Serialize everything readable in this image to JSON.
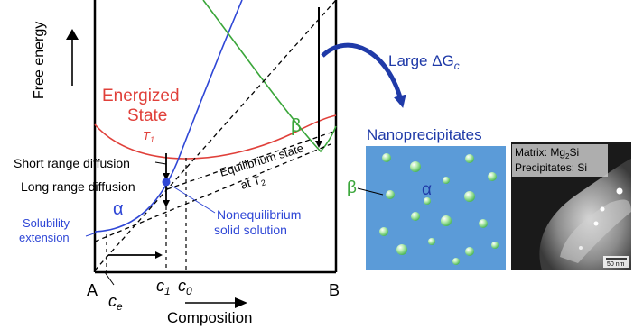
{
  "axes": {
    "ylabel": "Free energy",
    "xlabel": "Composition",
    "left_end": "A",
    "right_end": "B"
  },
  "curves": {
    "energized_state": "Energized",
    "energized_state_2": "State",
    "energized_temp": "T",
    "energized_temp_sub": "1",
    "alpha": "α",
    "beta": "β",
    "equilibrium_line1": "Equilibrium state",
    "equilibrium_line2": "at T",
    "equilibrium_line2_sub": "2"
  },
  "labels": {
    "short_range": "Short range diffusion",
    "long_range": "Long range diffusion",
    "solubility_1": "Solubility",
    "solubility_2": "extension",
    "noneq_1": "Nonequilibrium",
    "noneq_2": "solid solution",
    "ce": "c",
    "ce_sub": "e",
    "c1": "c",
    "c1_sub": "1",
    "c0": "c",
    "c0_sub": "0",
    "large_dg": "Large ΔG",
    "large_dg_sub": "c"
  },
  "nano": {
    "title": "Nanoprecipitates",
    "beta": "β",
    "alpha": "α"
  },
  "micrograph": {
    "matrix": "Matrix: Mg",
    "matrix_sub": "2",
    "matrix_tail": "Si",
    "precip": "Precipitates: Si",
    "scale": "50 nm"
  },
  "colors": {
    "energized": "#e0403a",
    "alpha": "#2f47d6",
    "beta": "#3aa63a",
    "arrow": "#1f3aa8",
    "panel": "#5b9bd8"
  }
}
